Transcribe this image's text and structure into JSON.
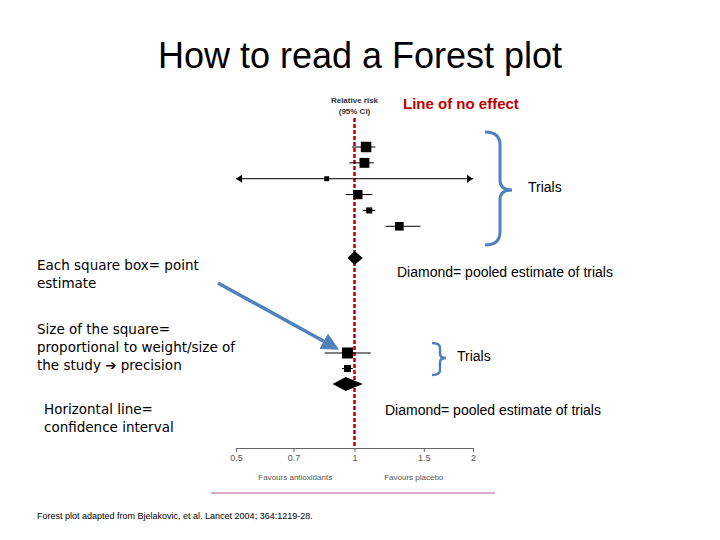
{
  "chart_data": {
    "type": "forest",
    "title": "How to read a Forest plot",
    "column_header": [
      "Relative risk",
      "(95% CI)"
    ],
    "no_effect_label": "Line of no effect",
    "no_effect": 1,
    "log": "x",
    "xlim": [
      0.5,
      2
    ],
    "xticks": [
      0.5,
      0.7,
      1,
      1.5,
      2
    ],
    "x_labels": [
      "Favours antioxidants",
      "Favours placebo"
    ],
    "groups": [
      {
        "label": "Trials",
        "pooled_label": "Diamond= pooled estimate of trials",
        "estimates": [
          1.07,
          1.06,
          0.85,
          1.02,
          1.09,
          1.3
        ],
        "ci_low": [
          0.985,
          0.97,
          0.45,
          0.95,
          1.05,
          1.2
        ],
        "ci_high": [
          1.13,
          1.12,
          2.2,
          1.11,
          1.13,
          1.47
        ],
        "weights": [
          9,
          8,
          2,
          7,
          3,
          6
        ],
        "pooled": 1.0,
        "pooled_low": 0.96,
        "pooled_high": 1.05
      },
      {
        "label": "Trials",
        "pooled_label": "Diamond= pooled estimate of trials",
        "estimates": [
          0.96,
          0.96
        ],
        "ci_low": [
          0.84,
          0.93
        ],
        "ci_high": [
          1.1,
          0.99
        ],
        "weights": [
          10,
          4
        ],
        "pooled": 0.95,
        "pooled_low": 0.88,
        "pooled_high": 1.05
      }
    ],
    "annotations": [
      [
        "Each square box= point",
        "estimate"
      ],
      [
        "Size of the square=",
        "proportional to weight/size of",
        "the study ➔ precision"
      ],
      [
        "Horizontal line=",
        "confidence interval"
      ]
    ],
    "source": "Forest plot adapted from Bjelakovic, et al. Lancet 2004; 364:1219-28."
  }
}
